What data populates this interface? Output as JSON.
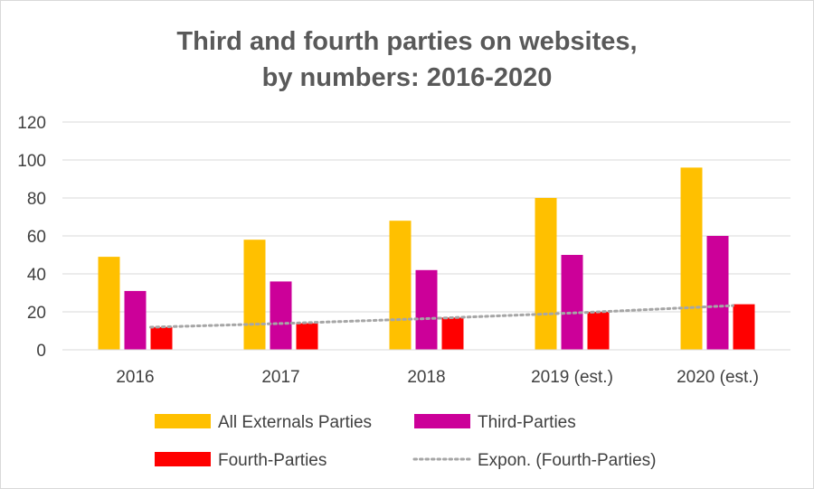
{
  "chart_data": {
    "type": "bar",
    "title_lines": [
      "Third and fourth parties on websites,",
      "by numbers: 2016-2020"
    ],
    "categories": [
      "2016",
      "2017",
      "2018",
      "2019 (est.)",
      "2020 (est.)"
    ],
    "series": [
      {
        "name": "All Externals Parties",
        "values": [
          49,
          58,
          68,
          80,
          96
        ],
        "color": "#FFC000"
      },
      {
        "name": "Third-Parties",
        "values": [
          31,
          36,
          42,
          50,
          60
        ],
        "color": "#CC0099"
      },
      {
        "name": "Fourth-Parties",
        "values": [
          12,
          14,
          17,
          20,
          24
        ],
        "color": "#FF0000"
      }
    ],
    "trendline": {
      "name": "Expon. (Fourth-Parties)",
      "values": [
        11.9,
        14.1,
        16.7,
        19.7,
        23.3
      ],
      "color": "#A6A6A6",
      "style": "dotted"
    },
    "ylim": [
      0,
      120
    ],
    "yticks": [
      0,
      20,
      40,
      60,
      80,
      100,
      120
    ],
    "grid": true,
    "legend_position": "bottom"
  }
}
